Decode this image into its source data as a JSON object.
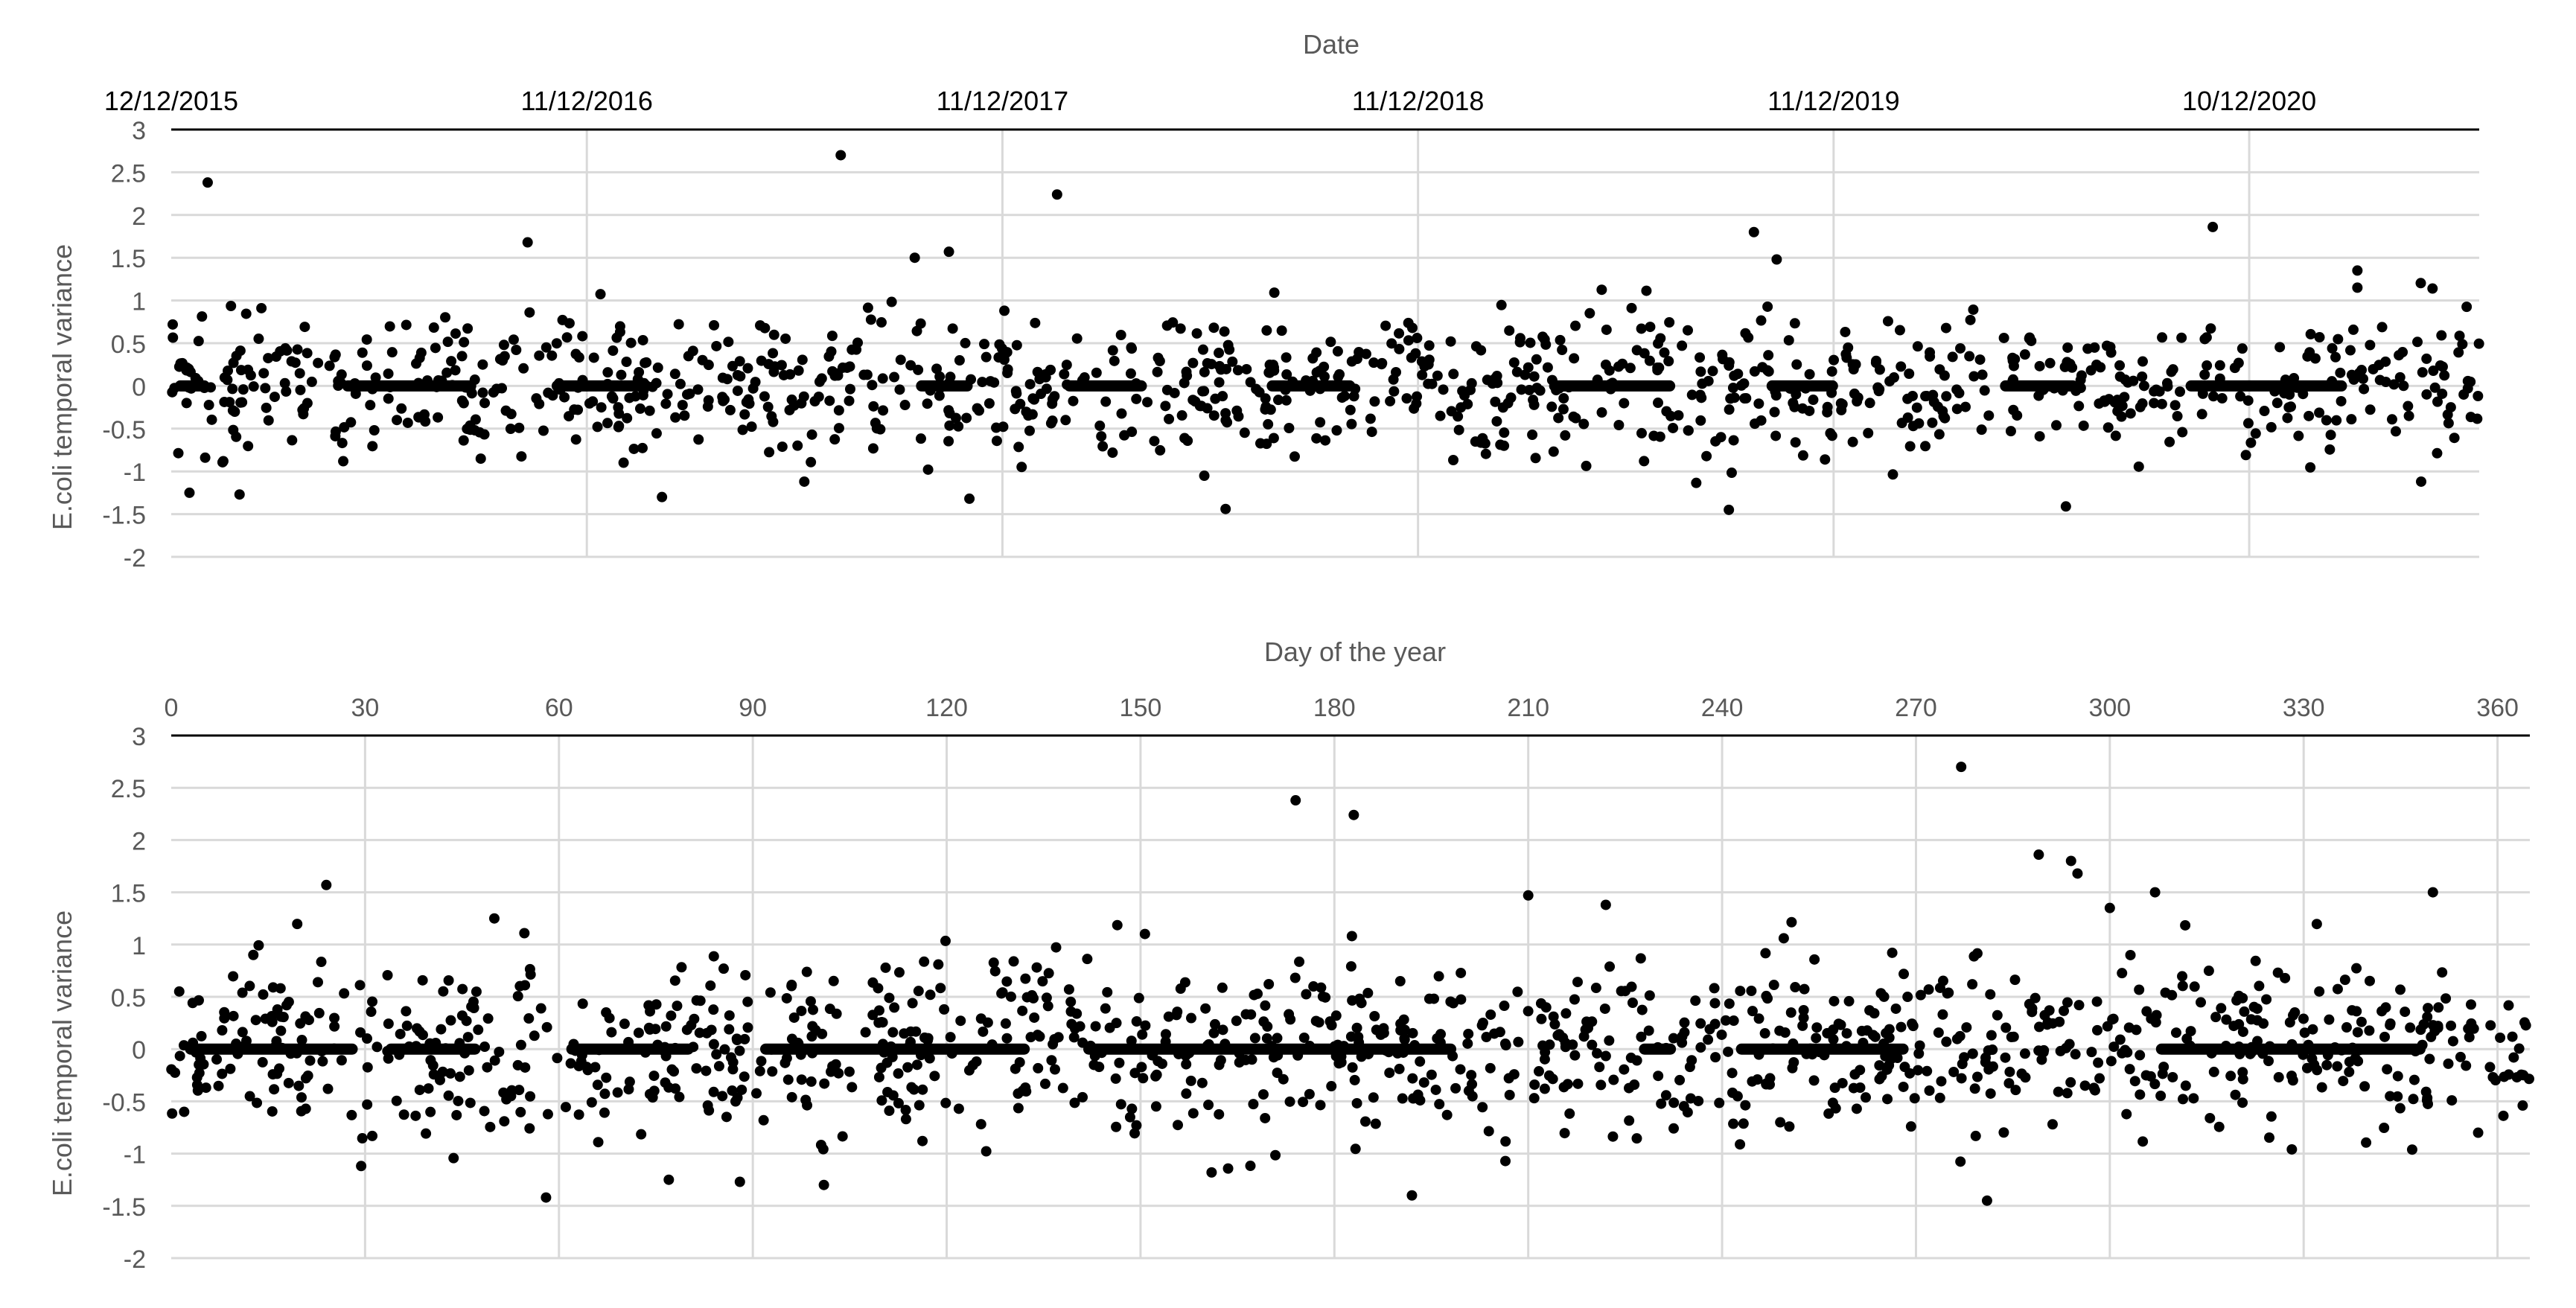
{
  "chart_data": [
    {
      "type": "scatter",
      "title": "",
      "xlabel": "Date",
      "ylabel": "E.coli temporal variance",
      "x_tick_labels": [
        "12/12/2015",
        "11/12/2016",
        "11/12/2017",
        "11/12/2018",
        "11/12/2019",
        "10/12/2020"
      ],
      "x_range": [
        "2015-12-12",
        "2021-06-30"
      ],
      "y_tick_labels": [
        "3",
        "2.5",
        "2",
        "1.5",
        "1",
        "0.5",
        "0",
        "-0.5",
        "-1",
        "-1.5",
        "-2"
      ],
      "ylim": [
        -2,
        3
      ],
      "grid": true,
      "x_axis_position": "top",
      "marker_color": "#000000",
      "series": [
        {
          "points": [
            [
              "2016-01-13",
              2.38
            ],
            [
              "2016-10-20",
              1.68
            ],
            [
              "2017-07-22",
              2.7
            ],
            [
              "2018-01-28",
              2.24
            ],
            [
              "2017-09-25",
              1.5
            ],
            [
              "2017-10-25",
              1.57
            ],
            [
              "2019-10-02",
              1.8
            ],
            [
              "2019-10-22",
              1.48
            ],
            [
              "2020-11-08",
              1.86
            ],
            [
              "2021-03-15",
              1.35
            ],
            [
              "2021-03-15",
              1.15
            ],
            [
              "2021-05-20",
              1.14
            ],
            [
              "2018-06-25",
              -1.44
            ],
            [
              "2019-09-10",
              -1.45
            ],
            [
              "2016-02-10",
              -1.27
            ],
            [
              "2017-02-15",
              -1.3
            ],
            [
              "2017-11-12",
              -1.32
            ],
            [
              "2020-07-02",
              -1.41
            ],
            [
              "2015-12-28",
              -1.25
            ],
            [
              "2017-06-20",
              -1.12
            ],
            [
              "2021-05-10",
              -1.12
            ]
          ],
          "random_points": {
            "count": 1050,
            "y_center": 0,
            "y_spread": 0.4,
            "seed": 7
          },
          "baseline_segments": [
            [
              "2015-12-20",
              "2016-01-10"
            ],
            [
              "2016-05-15",
              "2016-08-31"
            ],
            [
              "2016-11-15",
              "2017-02-01"
            ],
            [
              "2017-10-01",
              "2017-11-10"
            ],
            [
              "2018-02-08",
              "2018-04-12"
            ],
            [
              "2018-08-05",
              "2018-10-12"
            ],
            [
              "2019-04-10",
              "2019-07-20"
            ],
            [
              "2019-10-18",
              "2019-12-10"
            ],
            [
              "2020-05-10",
              "2020-07-08"
            ],
            [
              "2020-10-20",
              "2021-03-01"
            ]
          ]
        }
      ]
    },
    {
      "type": "scatter",
      "title": "",
      "xlabel": "Day of the year",
      "ylabel": "E.coli temporal variance",
      "x_ticks": [
        0,
        30,
        60,
        90,
        120,
        150,
        180,
        210,
        240,
        270,
        300,
        330,
        360
      ],
      "x_tick_labels": [
        "0",
        "30",
        "60",
        "90",
        "120",
        "150",
        "180",
        "210",
        "240",
        "270",
        "300",
        "330",
        "360"
      ],
      "xlim": [
        0,
        365
      ],
      "y_tick_labels": [
        "3",
        "2.5",
        "2",
        "1.5",
        "1",
        "0.5",
        "0",
        "-0.5",
        "-1",
        "-1.5",
        "-2"
      ],
      "ylim": [
        -2,
        3
      ],
      "grid": true,
      "x_axis_position": "top",
      "marker_color": "#000000",
      "series": [
        {
          "points": [
            [
              24,
              1.57
            ],
            [
              50,
              1.25
            ],
            [
              174,
              2.38
            ],
            [
              183,
              2.24
            ],
            [
              277,
              2.7
            ],
            [
              289,
              1.86
            ],
            [
              294,
              1.8
            ],
            [
              295,
              1.68
            ],
            [
              300,
              1.35
            ],
            [
              307,
              1.5
            ],
            [
              350,
              1.5
            ],
            [
              210,
              1.47
            ],
            [
              222,
              1.38
            ],
            [
              58,
              -1.42
            ],
            [
              192,
              -1.4
            ],
            [
              281,
              -1.45
            ],
            [
              101,
              -1.3
            ],
            [
              88,
              -1.27
            ],
            [
              77,
              -1.25
            ],
            [
              161,
              -1.18
            ],
            [
              2,
              -0.6
            ],
            [
              363,
              -0.27
            ],
            [
              357,
              -0.8
            ]
          ],
          "random_points": {
            "count": 1150,
            "y_center": 0,
            "y_spread": 0.42,
            "seed": 19
          },
          "baseline_segments": [
            [
              3,
              28
            ],
            [
              34,
              47
            ],
            [
              62,
              80
            ],
            [
              92,
              132
            ],
            [
              142,
              198
            ],
            [
              228,
              232
            ],
            [
              243,
              268
            ],
            [
              308,
              348
            ]
          ]
        }
      ]
    }
  ]
}
